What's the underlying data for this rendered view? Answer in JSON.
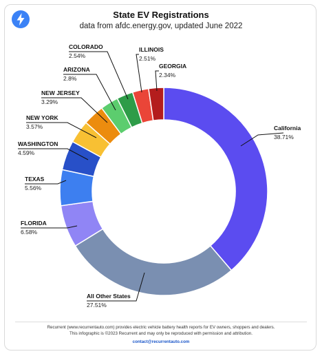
{
  "header": {
    "title": "State EV Registrations",
    "subtitle": "data from afdc.energy.gov, updated June 2022",
    "logo_icon": "lightning-bolt-icon"
  },
  "chart_data": {
    "type": "pie",
    "style": "donut",
    "title": "State EV Registrations",
    "subtitle": "data from afdc.energy.gov, updated June 2022",
    "slices": [
      {
        "label": "California",
        "value_label": "38.71%",
        "value": 38.71,
        "color": "#5b4cf0"
      },
      {
        "label": "All Other States",
        "value_label": "27.51%",
        "value": 27.51,
        "color": "#7a8fb1"
      },
      {
        "label": "FLORIDA",
        "value_label": "6.58%",
        "value": 6.58,
        "color": "#9085f5"
      },
      {
        "label": "TEXAS",
        "value_label": "5.56%",
        "value": 5.56,
        "color": "#3d7ff0"
      },
      {
        "label": "WASHINGTON",
        "value_label": "4.59%",
        "value": 4.59,
        "color": "#2850c8"
      },
      {
        "label": "NEW YORK",
        "value_label": "3.57%",
        "value": 3.57,
        "color": "#f8c033"
      },
      {
        "label": "NEW JERSEY",
        "value_label": "3.29%",
        "value": 3.29,
        "color": "#ec8c0e"
      },
      {
        "label": "ARIZONA",
        "value_label": "2.8%",
        "value": 2.8,
        "color": "#5ccd6e"
      },
      {
        "label": "COLORADO",
        "value_label": "2.54%",
        "value": 2.54,
        "color": "#2e9c48"
      },
      {
        "label": "ILLINOIS",
        "value_label": "2.51%",
        "value": 2.51,
        "color": "#ea4538"
      },
      {
        "label": "GEORGIA",
        "value_label": "2.34%",
        "value": 2.34,
        "color": "#b41d1d"
      }
    ]
  },
  "footer": {
    "line1": "Recurrent (www.recurrentauto.com) provides electric vehicle battery health reports for EV owners, shoppers and dealers.",
    "line2": "This infographic is ©2023 Recurrent and may only be reproduced with permission and attribution.",
    "contact": "contact@recurrentauto.com"
  }
}
